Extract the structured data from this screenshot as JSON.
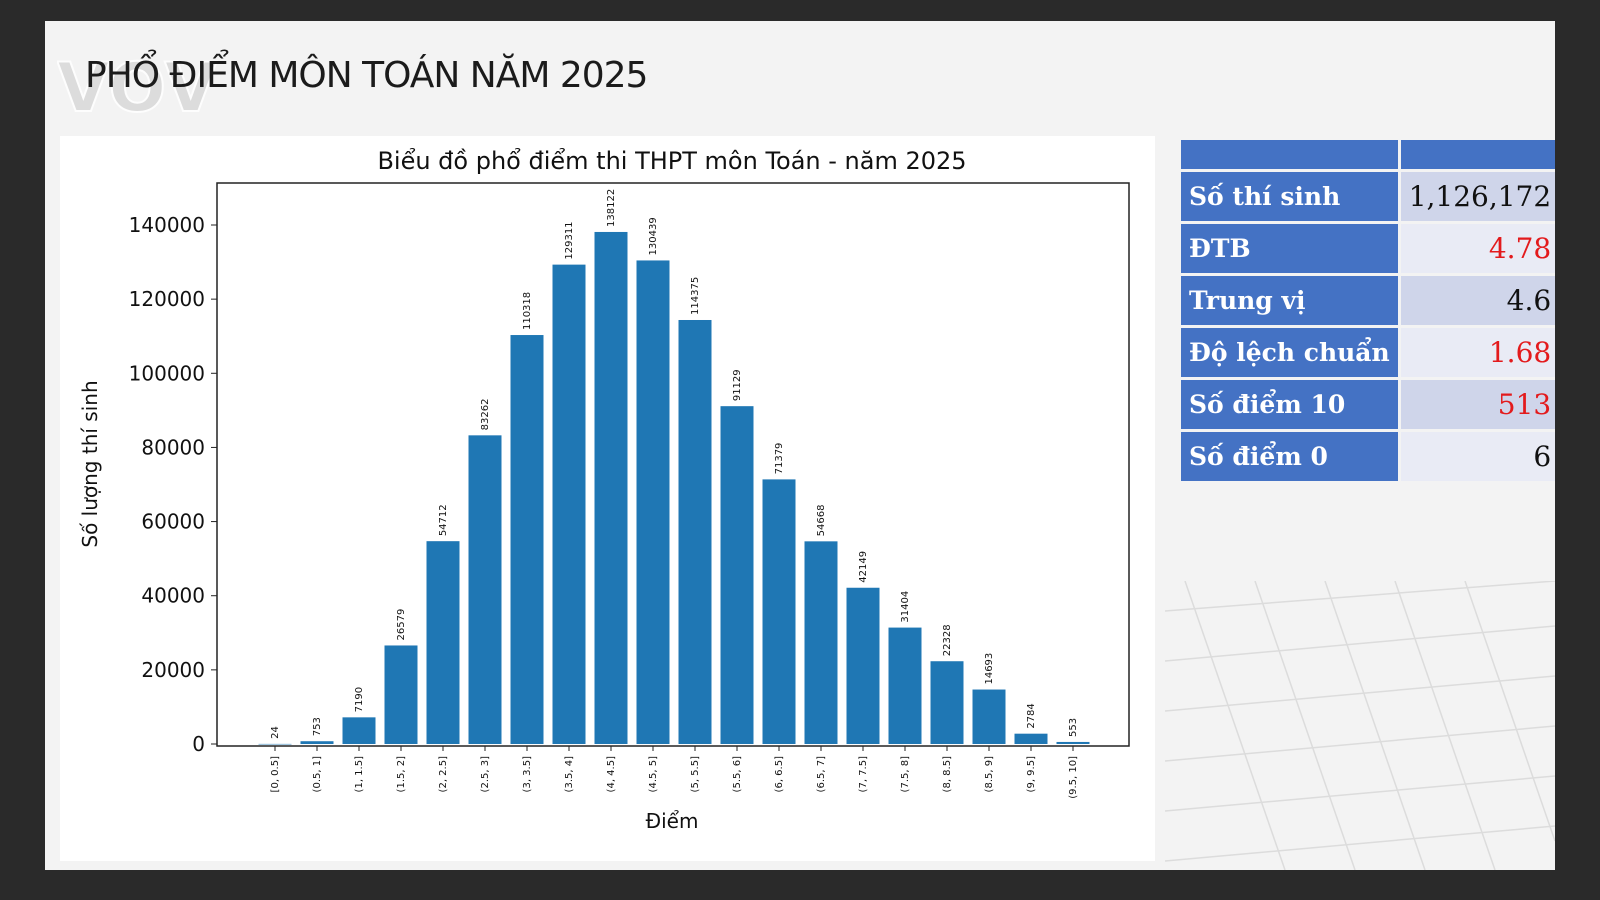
{
  "slide": {
    "title": "PHỔ ĐIỂM MÔN TOÁN NĂM 2025",
    "logo_text": "VOV"
  },
  "stats": {
    "rows": [
      {
        "label": "Số thí sinh",
        "value": "1,126,172"
      },
      {
        "label": "ĐTB",
        "value": "4.78"
      },
      {
        "label": "Trung vị",
        "value": "4.6"
      },
      {
        "label": "Độ lệch chuẩn",
        "value": "1.68"
      },
      {
        "label": "Số điểm 10",
        "value": "513"
      },
      {
        "label": "Số điểm 0",
        "value": "6"
      }
    ]
  },
  "colors": {
    "bar": "#1f77b4",
    "table_header": "#4472c4",
    "highlight_red": "#e31a1c"
  },
  "chart_data": {
    "type": "bar",
    "title": "Biểu đồ phổ điểm thi THPT môn Toán - năm 2025",
    "xlabel": "Điểm",
    "ylabel": "Số lượng thí sinh",
    "categories": [
      "[0, 0.5]",
      "(0.5, 1]",
      "(1, 1.5]",
      "(1.5, 2]",
      "(2, 2.5]",
      "(2.5, 3]",
      "(3, 3.5]",
      "(3.5, 4]",
      "(4, 4.5]",
      "(4.5, 5]",
      "(5, 5.5]",
      "(5.5, 6]",
      "(6, 6.5]",
      "(6.5, 7]",
      "(7, 7.5]",
      "(7.5, 8]",
      "(8, 8.5]",
      "(8.5, 9]",
      "(9, 9.5]",
      "(9.5, 10]"
    ],
    "values": [
      24,
      753,
      7190,
      26579,
      54712,
      83262,
      110318,
      129311,
      138122,
      130439,
      114375,
      91129,
      71379,
      54668,
      42149,
      31404,
      22328,
      14693,
      2784,
      553
    ],
    "yticks": [
      0,
      20000,
      40000,
      60000,
      80000,
      100000,
      120000,
      140000
    ],
    "ylim": [
      0,
      152000
    ],
    "grid": false,
    "legend": "none"
  }
}
